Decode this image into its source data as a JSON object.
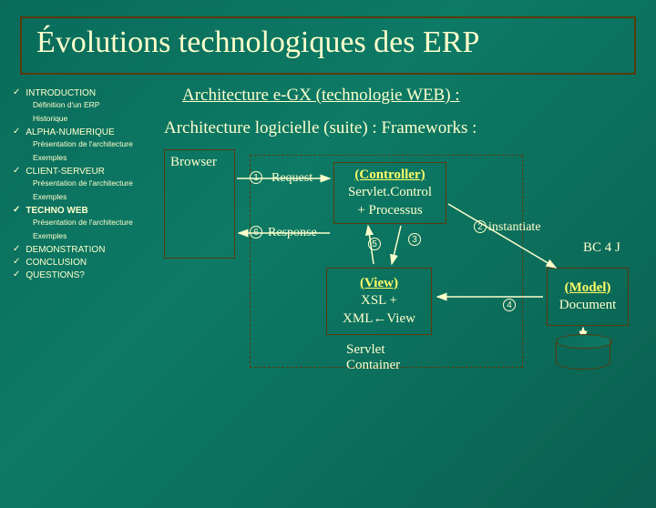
{
  "title": "Évolutions technologiques des ERP",
  "nav": {
    "items": [
      {
        "label": "INTRODUCTION",
        "subs": [
          "Définition d'un ERP",
          "Historique"
        ],
        "current": false
      },
      {
        "label": "ALPHA-NUMERIQUE",
        "subs": [
          "Présentation de l'architecture",
          "Exemples"
        ],
        "current": false
      },
      {
        "label": "CLIENT-SERVEUR",
        "subs": [
          "Présentation de l'architecture",
          "Exemples"
        ],
        "current": false
      },
      {
        "label": "TECHNO WEB",
        "subs": [
          "Présentation de l'architecture",
          "Exemples"
        ],
        "current": true
      },
      {
        "label": "DEMONSTRATION",
        "subs": [],
        "current": false
      },
      {
        "label": "CONCLUSION",
        "subs": [],
        "current": false
      },
      {
        "label": "QUESTIONS?",
        "subs": [],
        "current": false
      }
    ],
    "check": "✓"
  },
  "main": {
    "subtitle1": "Architecture e-GX (technologie WEB) :",
    "subtitle2": "Architecture logicielle (suite) : Frameworks :",
    "browser": "Browser",
    "controller_hdr": "(Controller)",
    "controller_l1": "Servlet.Control",
    "controller_l2": "+ Processus",
    "view_hdr": "(View)",
    "view_l1": "XSL +",
    "view_l2": "XML←View",
    "model_hdr": "(Model)",
    "model_l1": "Document",
    "servlet_container": "Servlet\nContainer",
    "bc4j": "BC 4 J",
    "request": "Request",
    "response": "Response",
    "instantiate": "instantiate",
    "nums": {
      "n1": "1",
      "n2": "2",
      "n3": "3",
      "n4": "4",
      "n5": "5",
      "n6": "6"
    }
  },
  "style": {
    "bg_gradient": [
      "#0a6b5a",
      "#0d7a65",
      "#0a5f4f"
    ],
    "text_color": "#ffffcc",
    "border_color": "#5a3a0a",
    "highlight": "#ffff66",
    "title_fontsize": 34,
    "subtitle_fontsize": 19,
    "box_fontsize": 15,
    "sidebar_fontsize": 10
  }
}
